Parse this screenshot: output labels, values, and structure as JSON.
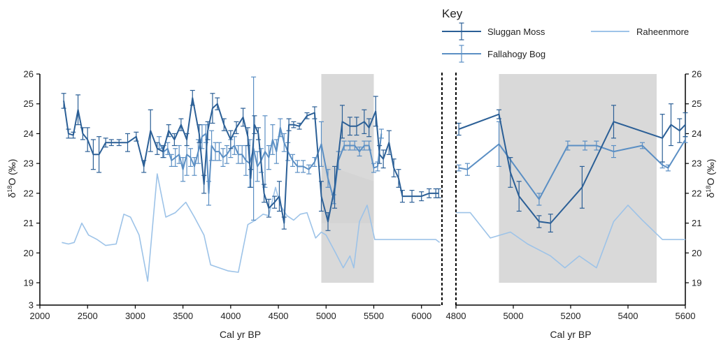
{
  "chart_data": [
    {
      "type": "line",
      "xlabel": "Cal yr BP",
      "ylabel": "δ18O (‰)",
      "xlim": [
        2000,
        6200
      ],
      "ylim": [
        19,
        26
      ],
      "x_ticks": [
        2000,
        2500,
        3000,
        3500,
        4000,
        4500,
        5000,
        5500,
        6000
      ],
      "y_ticks": [
        19,
        20,
        21,
        22,
        23,
        24,
        25,
        26
      ],
      "y_axis_bottom_label": "3",
      "shaded_region": [
        4950,
        5500
      ],
      "series": [
        {
          "name": "Sluggan Moss",
          "color": "#2b5f96",
          "x": [
            2250,
            2300,
            2350,
            2400,
            2450,
            2500,
            2560,
            2620,
            2690,
            2750,
            2830,
            2920,
            3010,
            3090,
            3160,
            3230,
            3290,
            3350,
            3410,
            3480,
            3540,
            3600,
            3670,
            3720,
            3760,
            3810,
            3860,
            3930,
            4000,
            4060,
            4130,
            4180,
            4210,
            4250,
            4290,
            4350,
            4400,
            4460,
            4510,
            4560,
            4610,
            4660,
            4720,
            4800,
            4880,
            4950,
            5020,
            5090,
            5170,
            5250,
            5320,
            5400,
            5450,
            5520,
            5560,
            5600,
            5660,
            5710,
            5760,
            5800,
            5900,
            6000,
            6080,
            6150,
            6180
          ],
          "values": [
            25.1,
            24.0,
            23.95,
            24.8,
            24.0,
            23.8,
            23.3,
            23.3,
            23.7,
            23.7,
            23.7,
            23.7,
            23.9,
            22.9,
            24.1,
            23.5,
            23.4,
            24.1,
            23.8,
            24.3,
            23.8,
            25.2,
            24.0,
            22.3,
            24.1,
            24.85,
            25.0,
            24.3,
            23.8,
            24.2,
            24.55,
            23.9,
            22.5,
            24.3,
            24.0,
            22.0,
            21.5,
            21.7,
            21.9,
            21.0,
            24.3,
            24.3,
            24.25,
            24.6,
            24.7,
            21.9,
            21.05,
            22.2,
            24.4,
            24.25,
            24.25,
            24.4,
            24.2,
            24.75,
            23.3,
            23.15,
            23.7,
            22.85,
            22.5,
            21.9,
            21.9,
            21.9,
            22.0,
            22.0,
            22.0
          ],
          "errors": [
            0.25,
            0.15,
            0.1,
            0.5,
            0.2,
            0.4,
            0.5,
            0.6,
            0.15,
            0.1,
            0.1,
            0.3,
            0.15,
            0.2,
            0.7,
            0.2,
            0.2,
            0.2,
            0.2,
            0.2,
            0.2,
            0.25,
            0.3,
            0.3,
            0.3,
            0.5,
            0.2,
            0.2,
            0.3,
            0.2,
            0.3,
            0.3,
            0.3,
            0.3,
            0.2,
            0.3,
            0.3,
            0.2,
            0.5,
            0.2,
            0.2,
            0.1,
            0.1,
            0.1,
            0.2,
            0.5,
            0.3,
            0.7,
            0.55,
            0.3,
            0.3,
            0.4,
            0.3,
            0.5,
            0.3,
            0.3,
            0.4,
            0.3,
            0.3,
            0.2,
            0.2,
            0.15,
            0.15,
            0.15,
            0.15
          ]
        },
        {
          "name": "Fallahogy Bog",
          "color": "#5b8fc4",
          "x": [
            3250,
            3300,
            3340,
            3380,
            3420,
            3460,
            3500,
            3540,
            3580,
            3620,
            3660,
            3700,
            3740,
            3770,
            3800,
            3840,
            3880,
            3920,
            3960,
            4000,
            4040,
            4080,
            4120,
            4160,
            4200,
            4240,
            4280,
            4320,
            4360,
            4400,
            4440,
            4480,
            4520,
            4560,
            4600,
            4650,
            4700,
            4760,
            4820,
            4880,
            4950,
            5020,
            5080,
            5130,
            5190,
            5250,
            5300,
            5350,
            5400,
            5450,
            5500,
            5540,
            5580
          ],
          "values": [
            23.7,
            23.4,
            23.5,
            23.1,
            23.2,
            23.3,
            22.8,
            23.3,
            23.2,
            22.9,
            23.4,
            23.9,
            24.0,
            22.0,
            23.6,
            23.4,
            23.4,
            23.2,
            23.3,
            23.5,
            23.6,
            23.3,
            23.3,
            23.1,
            23.0,
            23.5,
            22.9,
            23.1,
            23.4,
            23.2,
            23.8,
            23.4,
            24.2,
            23.7,
            23.4,
            23.1,
            22.9,
            22.9,
            22.8,
            23.05,
            23.65,
            22.5,
            21.8,
            23.1,
            23.6,
            23.6,
            23.6,
            23.4,
            23.6,
            23.6,
            22.85,
            22.9,
            24.0
          ],
          "errors": [
            0.2,
            0.2,
            0.2,
            0.2,
            0.3,
            0.3,
            0.4,
            0.7,
            0.3,
            0.3,
            0.4,
            0.4,
            0.3,
            0.4,
            0.5,
            0.3,
            0.3,
            0.3,
            0.3,
            0.3,
            0.3,
            0.3,
            0.3,
            0.5,
            0.8,
            2.4,
            0.5,
            0.4,
            1.2,
            0.4,
            0.5,
            0.4,
            0.3,
            0.3,
            0.3,
            0.2,
            0.2,
            0.2,
            0.15,
            0.15,
            0.75,
            0.3,
            0.15,
            0.3,
            0.15,
            0.15,
            0.15,
            0.15,
            0.15,
            0.15,
            0.15,
            0.15,
            0.15
          ]
        },
        {
          "name": "Raheenmore",
          "color": "#9dc3e8",
          "x": [
            2230,
            2300,
            2360,
            2440,
            2510,
            2600,
            2690,
            2800,
            2880,
            2950,
            3040,
            3130,
            3230,
            3320,
            3420,
            3530,
            3620,
            3720,
            3790,
            3880,
            3970,
            4080,
            4180,
            4260,
            4340,
            4400,
            4470,
            4520,
            4590,
            4660,
            4730,
            4800,
            4890,
            4950,
            5000,
            5050,
            5100,
            5180,
            5250,
            5290,
            5350,
            5430,
            5510,
            5570,
            5650,
            6100,
            6150,
            6190
          ],
          "values": [
            20.35,
            20.3,
            20.35,
            21.0,
            20.6,
            20.45,
            20.25,
            20.3,
            21.3,
            21.2,
            20.6,
            19.05,
            22.65,
            21.2,
            21.35,
            21.7,
            21.2,
            20.6,
            19.6,
            19.5,
            19.4,
            19.35,
            20.95,
            21.1,
            21.3,
            21.25,
            22.2,
            21.6,
            21.25,
            21.1,
            21.3,
            21.35,
            20.5,
            20.7,
            20.6,
            20.3,
            20.0,
            19.5,
            19.9,
            19.5,
            21.05,
            21.6,
            20.45,
            20.45,
            20.45,
            20.45,
            20.45,
            20.35
          ]
        }
      ],
      "legend": {
        "title": "Key",
        "entries": [
          "Sluggan Moss",
          "Fallahogy Bog",
          "Raheenmore"
        ]
      }
    },
    {
      "type": "line",
      "xlabel": "Cal yr BP",
      "ylabel": "δ18O (‰)",
      "xlim": [
        4800,
        5600
      ],
      "ylim": [
        19,
        26
      ],
      "x_ticks": [
        4800,
        5000,
        5200,
        5400,
        5600
      ],
      "y_ticks": [
        19,
        20,
        21,
        22,
        23,
        24,
        25,
        26
      ],
      "shaded_region": [
        4950,
        5500
      ],
      "series": [
        {
          "name": "Sluggan Moss",
          "color": "#2b5f96",
          "x": [
            4810,
            4950,
            4990,
            5020,
            5090,
            5130,
            5240,
            5350,
            5520,
            5550,
            5580,
            5600
          ],
          "values": [
            24.15,
            24.65,
            22.7,
            21.9,
            21.05,
            21.0,
            22.2,
            24.4,
            23.85,
            24.3,
            24.1,
            24.3
          ],
          "errors": [
            0.2,
            0.15,
            0.5,
            0.5,
            0.2,
            0.3,
            0.7,
            0.55,
            0.8,
            0.7,
            0.4,
            0.4
          ]
        },
        {
          "name": "Fallahogy Bog",
          "color": "#5b8fc4",
          "x": [
            4810,
            4840,
            4950,
            5090,
            5190,
            5250,
            5290,
            5350,
            5450,
            5520,
            5540,
            5600
          ],
          "values": [
            22.85,
            22.8,
            23.65,
            21.8,
            23.6,
            23.6,
            23.6,
            23.4,
            23.6,
            22.95,
            22.85,
            23.8
          ],
          "errors": [
            0.1,
            0.2,
            0.75,
            0.2,
            0.15,
            0.15,
            0.15,
            0.2,
            0.1,
            0.1,
            0.1,
            0.1
          ]
        },
        {
          "name": "Raheenmore",
          "color": "#9dc3e8",
          "x": [
            4800,
            4850,
            4920,
            4990,
            5050,
            5130,
            5180,
            5230,
            5290,
            5350,
            5400,
            5450,
            5520,
            5600
          ],
          "values": [
            21.35,
            21.35,
            20.5,
            20.7,
            20.3,
            19.9,
            19.5,
            19.9,
            19.5,
            21.05,
            21.6,
            21.1,
            20.45,
            20.45
          ]
        }
      ]
    }
  ]
}
